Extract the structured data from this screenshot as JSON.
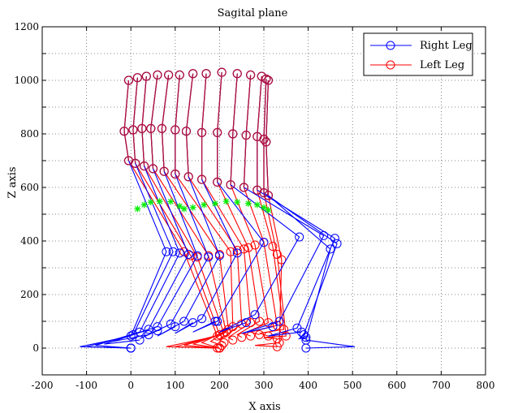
{
  "chart_data": {
    "type": "line",
    "title": "Sagital plane",
    "xlabel": "X axis",
    "ylabel": "Z axis",
    "xlim": [
      -200,
      800
    ],
    "ylim": [
      -100,
      1200
    ],
    "x_ticks": [
      "-200",
      "-100",
      "0",
      "100",
      "200",
      "300",
      "400",
      "500",
      "600",
      "700",
      "800"
    ],
    "y_ticks": [
      "0",
      "200",
      "400",
      "600",
      "800",
      "1000",
      "1200"
    ],
    "grid": true,
    "legend_position": "top-right",
    "colors": {
      "right": "#0000ff",
      "left": "#ff0000",
      "mixed": "#b0103c",
      "com": "#00ee00"
    },
    "series": [
      {
        "name": "Right Leg",
        "color": "#0000ff",
        "frames": [
          [
            [
              -5,
              1000
            ],
            [
              -15,
              810
            ],
            [
              -5,
              700
            ],
            [
              80,
              360
            ],
            [
              0,
              45
            ],
            [
              -115,
              5
            ],
            [
              0,
              0
            ]
          ],
          [
            [
              15,
              1010
            ],
            [
              5,
              815
            ],
            [
              10,
              690
            ],
            [
              95,
              360
            ],
            [
              5,
              50
            ],
            [
              -100,
              5
            ],
            [
              0,
              0
            ]
          ],
          [
            [
              35,
              1015
            ],
            [
              25,
              820
            ],
            [
              30,
              680
            ],
            [
              110,
              355
            ],
            [
              20,
              60
            ],
            [
              -80,
              10
            ],
            [
              0,
              0
            ]
          ],
          [
            [
              60,
              1020
            ],
            [
              45,
              820
            ],
            [
              50,
              670
            ],
            [
              130,
              350
            ],
            [
              40,
              70
            ],
            [
              -60,
              15
            ],
            [
              20,
              30
            ]
          ],
          [
            [
              85,
              1020
            ],
            [
              70,
              820
            ],
            [
              75,
              660
            ],
            [
              150,
              345
            ],
            [
              60,
              80
            ],
            [
              -40,
              25
            ],
            [
              40,
              50
            ]
          ],
          [
            [
              110,
              1020
            ],
            [
              100,
              815
            ],
            [
              100,
              650
            ],
            [
              175,
              340
            ],
            [
              90,
              90
            ],
            [
              20,
              35
            ],
            [
              60,
              65
            ]
          ],
          [
            [
              140,
              1025
            ],
            [
              125,
              810
            ],
            [
              130,
              640
            ],
            [
              200,
              345
            ],
            [
              120,
              100
            ],
            [
              60,
              45
            ],
            [
              100,
              80
            ]
          ],
          [
            [
              170,
              1025
            ],
            [
              160,
              805
            ],
            [
              160,
              630
            ],
            [
              240,
              355
            ],
            [
              160,
              110
            ],
            [
              100,
              55
            ],
            [
              140,
              95
            ]
          ],
          [
            [
              205,
              1030
            ],
            [
              195,
              805
            ],
            [
              195,
              620
            ],
            [
              300,
              395
            ],
            [
              195,
              100
            ],
            [
              140,
              60
            ],
            [
              190,
              100
            ]
          ],
          [
            [
              240,
              1025
            ],
            [
              230,
              800
            ],
            [
              225,
              610
            ],
            [
              380,
              415
            ],
            [
              280,
              125
            ],
            [
              200,
              60
            ],
            [
              260,
              95
            ]
          ],
          [
            [
              270,
              1020
            ],
            [
              260,
              795
            ],
            [
              255,
              600
            ],
            [
              435,
              420
            ],
            [
              335,
              100
            ],
            [
              250,
              55
            ],
            [
              320,
              80
            ]
          ],
          [
            [
              295,
              1015
            ],
            [
              285,
              790
            ],
            [
              285,
              590
            ],
            [
              460,
              410
            ],
            [
              375,
              75
            ],
            [
              310,
              45
            ],
            [
              385,
              60
            ]
          ],
          [
            [
              305,
              1005
            ],
            [
              300,
              780
            ],
            [
              300,
              580
            ],
            [
              465,
              390
            ],
            [
              390,
              50
            ],
            [
              380,
              35
            ],
            [
              395,
              40
            ]
          ],
          [
            [
              310,
              1000
            ],
            [
              305,
              770
            ],
            [
              310,
              570
            ],
            [
              450,
              370
            ],
            [
              395,
              30
            ],
            [
              505,
              5
            ],
            [
              395,
              0
            ]
          ]
        ]
      },
      {
        "name": "Left Leg",
        "color": "#ff0000",
        "frames": [
          [
            [
              -5,
              1000
            ],
            [
              -15,
              810
            ],
            [
              -5,
              700
            ],
            [
              120,
              360
            ],
            [
              195,
              45
            ],
            [
              80,
              5
            ],
            [
              195,
              0
            ]
          ],
          [
            [
              15,
              1010
            ],
            [
              5,
              815
            ],
            [
              10,
              690
            ],
            [
              135,
              345
            ],
            [
              200,
              50
            ],
            [
              100,
              5
            ],
            [
              200,
              0
            ]
          ],
          [
            [
              35,
              1015
            ],
            [
              25,
              820
            ],
            [
              30,
              680
            ],
            [
              150,
              340
            ],
            [
              210,
              55
            ],
            [
              120,
              10
            ],
            [
              200,
              0
            ]
          ],
          [
            [
              60,
              1020
            ],
            [
              45,
              820
            ],
            [
              50,
              670
            ],
            [
              175,
              345
            ],
            [
              215,
              60
            ],
            [
              140,
              15
            ],
            [
              200,
              0
            ]
          ],
          [
            [
              85,
              1020
            ],
            [
              70,
              820
            ],
            [
              75,
              660
            ],
            [
              200,
              350
            ],
            [
              220,
              70
            ],
            [
              160,
              20
            ],
            [
              200,
              0
            ]
          ],
          [
            [
              110,
              1020
            ],
            [
              100,
              815
            ],
            [
              100,
              650
            ],
            [
              225,
              360
            ],
            [
              230,
              80
            ],
            [
              180,
              25
            ],
            [
              205,
              10
            ]
          ],
          [
            [
              140,
              1025
            ],
            [
              125,
              810
            ],
            [
              130,
              640
            ],
            [
              240,
              365
            ],
            [
              250,
              90
            ],
            [
              200,
              30
            ],
            [
              210,
              20
            ]
          ],
          [
            [
              170,
              1025
            ],
            [
              160,
              805
            ],
            [
              160,
              630
            ],
            [
              255,
              370
            ],
            [
              270,
              95
            ],
            [
              220,
              40
            ],
            [
              230,
              30
            ]
          ],
          [
            [
              205,
              1030
            ],
            [
              195,
              805
            ],
            [
              195,
              620
            ],
            [
              265,
              375
            ],
            [
              290,
              100
            ],
            [
              240,
              50
            ],
            [
              250,
              40
            ]
          ],
          [
            [
              240,
              1025
            ],
            [
              230,
              800
            ],
            [
              225,
              610
            ],
            [
              280,
              385
            ],
            [
              310,
              95
            ],
            [
              255,
              55
            ],
            [
              270,
              45
            ]
          ],
          [
            [
              270,
              1020
            ],
            [
              260,
              795
            ],
            [
              255,
              600
            ],
            [
              300,
              395
            ],
            [
              330,
              85
            ],
            [
              270,
              60
            ],
            [
              290,
              50
            ]
          ],
          [
            [
              295,
              1015
            ],
            [
              285,
              790
            ],
            [
              285,
              590
            ],
            [
              320,
              380
            ],
            [
              345,
              70
            ],
            [
              290,
              55
            ],
            [
              310,
              45
            ]
          ],
          [
            [
              305,
              1005
            ],
            [
              300,
              780
            ],
            [
              300,
              580
            ],
            [
              330,
              350
            ],
            [
              350,
              45
            ],
            [
              300,
              40
            ],
            [
              330,
              35
            ]
          ],
          [
            [
              310,
              1000
            ],
            [
              305,
              770
            ],
            [
              310,
              570
            ],
            [
              340,
              330
            ],
            [
              335,
              20
            ],
            [
              280,
              10
            ],
            [
              330,
              5
            ]
          ]
        ]
      },
      {
        "name": "",
        "color": "#00ee00",
        "marker": "star",
        "points": [
          [
            15,
            520
          ],
          [
            30,
            535
          ],
          [
            45,
            545
          ],
          [
            65,
            548
          ],
          [
            90,
            547
          ],
          [
            110,
            530
          ],
          [
            120,
            520
          ],
          [
            140,
            525
          ],
          [
            165,
            535
          ],
          [
            190,
            540
          ],
          [
            215,
            548
          ],
          [
            240,
            545
          ],
          [
            265,
            540
          ],
          [
            285,
            535
          ],
          [
            300,
            525
          ],
          [
            310,
            515
          ]
        ]
      }
    ]
  },
  "legend": {
    "items": [
      {
        "label": "Right Leg",
        "color": "#0000ff"
      },
      {
        "label": "Left Leg",
        "color": "#ff0000"
      }
    ]
  }
}
